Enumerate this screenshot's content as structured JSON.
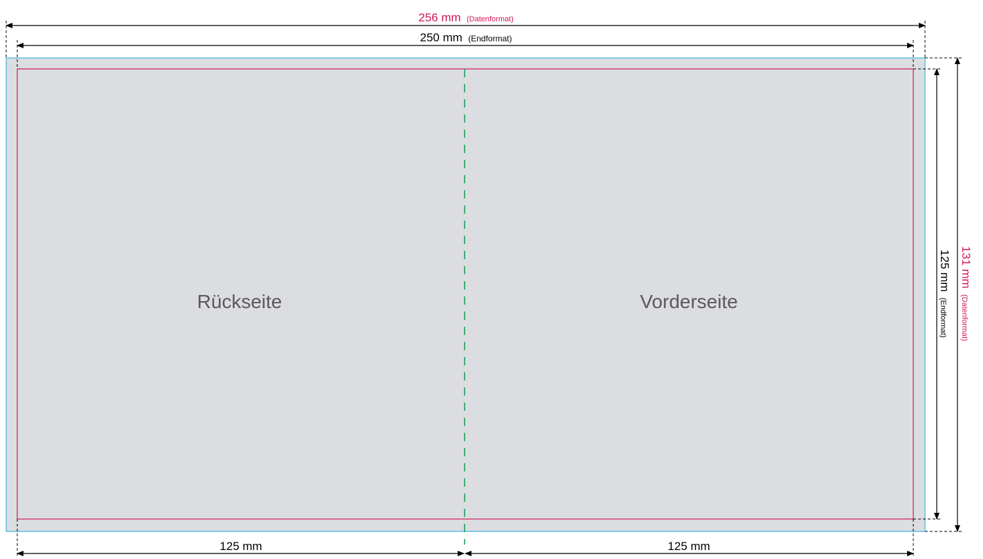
{
  "dimensions": {
    "data_width": {
      "value": "256 mm",
      "note": "(Datenformat)"
    },
    "final_width": {
      "value": "250  mm",
      "note": "(Endformat)"
    },
    "data_height": {
      "value": "131 mm",
      "note": "(Datenformat)"
    },
    "final_height": {
      "value": "125 mm",
      "note": "(Endformat)"
    },
    "left_half": "125 mm",
    "right_half": "125 mm"
  },
  "panels": {
    "back": "Rückseite",
    "front": "Vorderseite"
  },
  "colors": {
    "sheet_fill": "#dcdde0",
    "bleed_line": "#3fb4e0",
    "trim_line": "#d1185a",
    "fold_line": "#1aa15a",
    "accent_text": "#d1185a",
    "dimension_line": "#000000",
    "panel_text": "#5a5a5a"
  }
}
